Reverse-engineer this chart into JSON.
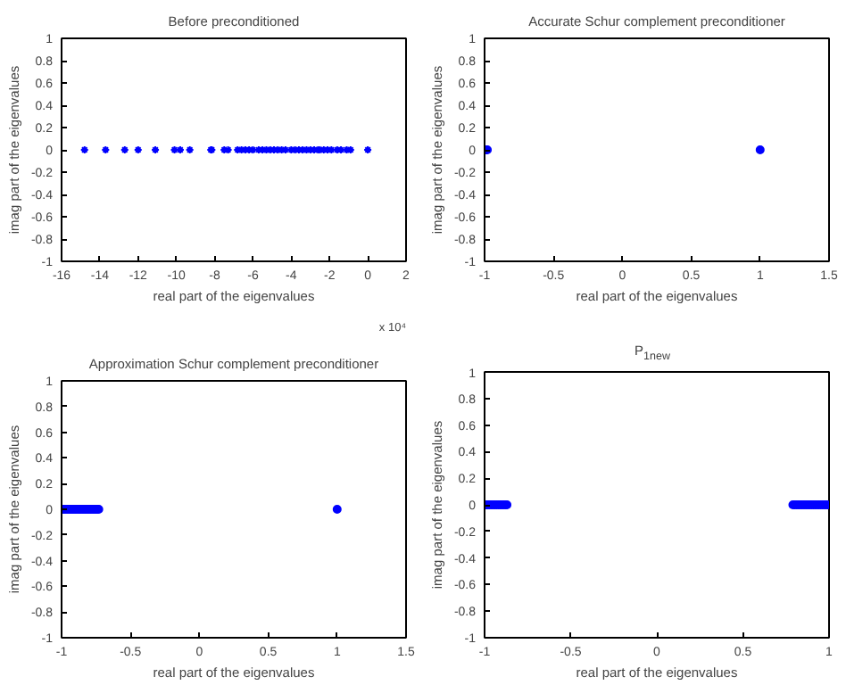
{
  "chart_data": [
    {
      "type": "scatter",
      "title": "Before preconditioned",
      "xlabel": "real part of the eigenvalues",
      "ylabel": "imag part of the eigenvalues",
      "marker": "cross",
      "grid": false,
      "xlim": [
        -16,
        2
      ],
      "xticks": [
        -16,
        -14,
        -12,
        -10,
        -8,
        -6,
        -4,
        -2,
        0,
        2
      ],
      "ylim": [
        -1,
        1
      ],
      "yticks": [
        -1,
        -0.8,
        -0.6,
        -0.4,
        -0.2,
        0,
        0.2,
        0.4,
        0.6,
        0.8,
        1
      ],
      "annotations": [
        "x 10⁴"
      ],
      "series": [
        {
          "color": "#0000ff",
          "x": [
            -14.8,
            -13.7,
            -12.7,
            -12.0,
            -11.1,
            -10.1,
            -9.8,
            -9.3,
            -8.2,
            -8.15,
            -7.5,
            -7.3,
            -6.8,
            -6.6,
            -6.4,
            -6.2,
            -6.0,
            -5.7,
            -5.5,
            -5.3,
            -5.1,
            -4.9,
            -4.7,
            -4.5,
            -4.3,
            -4.0,
            -3.8,
            -3.6,
            -3.4,
            -3.2,
            -3.0,
            -2.8,
            -2.6,
            -2.5,
            -2.3,
            -2.1,
            -1.9,
            -1.6,
            -1.4,
            -1.1,
            -0.9,
            0.0
          ],
          "values": [
            0,
            0,
            0,
            0,
            0,
            0,
            0,
            0,
            0,
            0,
            0,
            0,
            0,
            0,
            0,
            0,
            0,
            0,
            0,
            0,
            0,
            0,
            0,
            0,
            0,
            0,
            0,
            0,
            0,
            0,
            0,
            0,
            0,
            0,
            0,
            0,
            0,
            0,
            0,
            0,
            0,
            0
          ]
        }
      ]
    },
    {
      "type": "scatter",
      "title": "Accurate Schur complement preconditioner",
      "xlabel": "real part of the eigenvalues",
      "ylabel": "imag part of the eigenvalues",
      "marker": "circle",
      "grid": false,
      "xlim": [
        -1,
        1.5
      ],
      "xticks": [
        -1,
        -0.5,
        0,
        0.5,
        1,
        1.5
      ],
      "ylim": [
        -1,
        1
      ],
      "yticks": [
        -1,
        -0.8,
        -0.6,
        -0.4,
        -0.2,
        0,
        0.2,
        0.4,
        0.6,
        0.8,
        1
      ],
      "series": [
        {
          "color": "#0000ff",
          "x": [
            -0.99,
            -0.98,
            1.0
          ],
          "values": [
            0,
            0,
            0
          ]
        }
      ]
    },
    {
      "type": "scatter",
      "title": "Approximation Schur complement preconditioner",
      "xlabel": "real part of the eigenvalues",
      "ylabel": "imag part of the eigenvalues",
      "marker": "circle",
      "grid": false,
      "xlim": [
        -1,
        1.5
      ],
      "xticks": [
        -1,
        -0.5,
        0,
        0.5,
        1,
        1.5
      ],
      "ylim": [
        -1,
        1
      ],
      "yticks": [
        -1,
        -0.8,
        -0.6,
        -0.4,
        -0.2,
        0,
        0.2,
        0.4,
        0.6,
        0.8,
        1
      ],
      "series": [
        {
          "color": "#0000ff",
          "x": [
            -0.99,
            -0.98,
            -0.97,
            -0.96,
            -0.95,
            -0.94,
            -0.93,
            -0.92,
            -0.91,
            -0.9,
            -0.89,
            -0.88,
            -0.87,
            -0.86,
            -0.85,
            -0.84,
            -0.83,
            -0.82,
            -0.81,
            -0.8,
            -0.79,
            -0.78,
            -0.77,
            -0.76,
            -0.75,
            -0.74,
            -0.73,
            1.0
          ],
          "values": [
            0,
            0,
            0,
            0,
            0,
            0,
            0,
            0,
            0,
            0,
            0,
            0,
            0,
            0,
            0,
            0,
            0,
            0,
            0,
            0,
            0,
            0,
            0,
            0,
            0,
            0,
            0,
            0
          ]
        }
      ]
    },
    {
      "type": "scatter",
      "title": "P$_{1new}$",
      "xlabel": "real part of the eigenvalues",
      "ylabel": "imag part of the eigenvalues",
      "marker": "circle",
      "grid": false,
      "xlim": [
        -1,
        1
      ],
      "xticks": [
        -1,
        -0.5,
        0,
        0.5,
        1
      ],
      "ylim": [
        -1,
        1
      ],
      "yticks": [
        -1,
        -0.8,
        -0.6,
        -0.4,
        -0.2,
        0,
        0.2,
        0.4,
        0.6,
        0.8,
        1
      ],
      "series": [
        {
          "color": "#0000ff",
          "x": [
            -0.99,
            -0.98,
            -0.97,
            -0.96,
            -0.95,
            -0.94,
            -0.93,
            -0.92,
            -0.91,
            -0.9,
            -0.89,
            -0.88,
            -0.87,
            0.79,
            0.8,
            0.81,
            0.82,
            0.83,
            0.84,
            0.85,
            0.86,
            0.87,
            0.88,
            0.89,
            0.9,
            0.91,
            0.92,
            0.93,
            0.94,
            0.95,
            0.96,
            0.97,
            0.98,
            0.99
          ],
          "values": [
            0,
            0,
            0,
            0,
            0,
            0,
            0,
            0,
            0,
            0,
            0,
            0,
            0,
            0,
            0,
            0,
            0,
            0,
            0,
            0,
            0,
            0,
            0,
            0,
            0,
            0,
            0,
            0,
            0,
            0,
            0,
            0,
            0,
            0
          ]
        }
      ]
    }
  ]
}
